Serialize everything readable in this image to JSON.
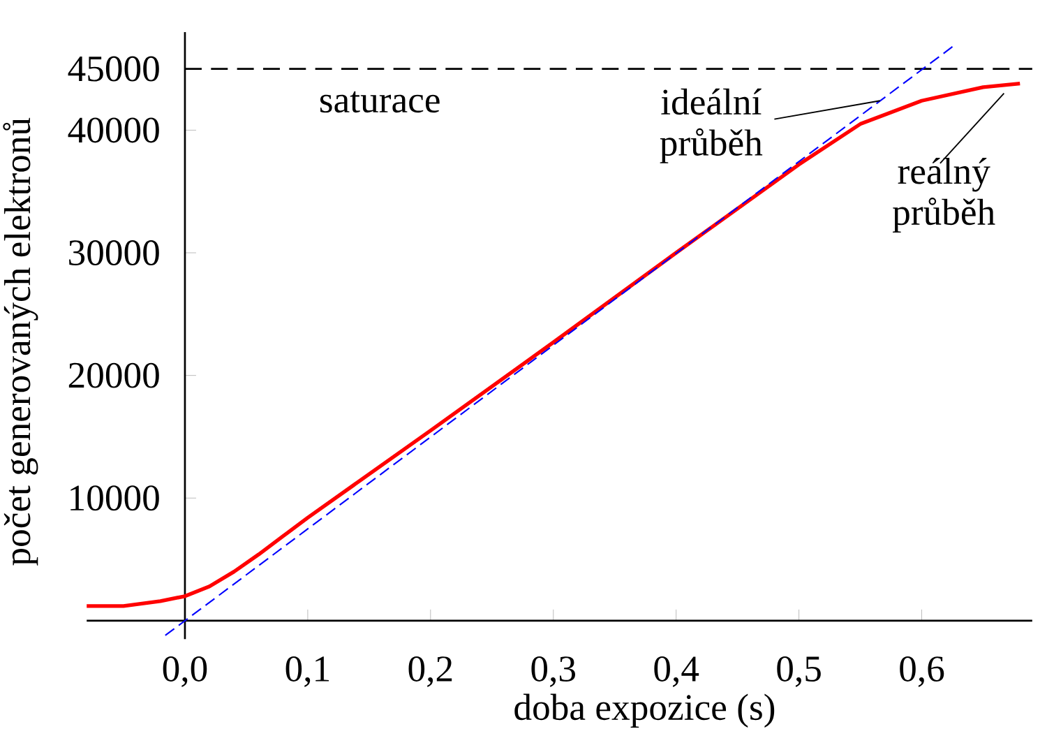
{
  "chart_data": {
    "type": "line",
    "xlabel": "doba expozice (s)",
    "ylabel": "počet generovaných elektronů",
    "xlim": [
      -0.08,
      0.69
    ],
    "ylim": [
      -1500,
      48000
    ],
    "xticks": [
      {
        "value": 0,
        "label": "0,0"
      },
      {
        "value": 0.1,
        "label": "0,1"
      },
      {
        "value": 0.2,
        "label": "0,2"
      },
      {
        "value": 0.3,
        "label": "0,3"
      },
      {
        "value": 0.4,
        "label": "0,4"
      },
      {
        "value": 0.5,
        "label": "0,5"
      },
      {
        "value": 0.6,
        "label": "0,6"
      }
    ],
    "yticks": [
      10000,
      20000,
      30000,
      40000,
      45000
    ],
    "series": [
      {
        "color": "#ff0000",
        "line_style": "solid",
        "x": [
          -0.08,
          -0.05,
          -0.02,
          0,
          0.02,
          0.04,
          0.06,
          0.08,
          0.1,
          0.2,
          0.3,
          0.4,
          0.5,
          0.55,
          0.6,
          0.65,
          0.68
        ],
        "values": [
          1200,
          1200,
          1600,
          2000,
          2800,
          4000,
          5400,
          6900,
          8400,
          15500,
          22700,
          30000,
          37200,
          40500,
          42400,
          43500,
          43800
        ]
      },
      {
        "color": "#0000ff",
        "line_style": "dashed",
        "x": [
          -0.016,
          0.625
        ],
        "values": [
          -1200,
          46800
        ]
      }
    ],
    "ref_lines": [
      {
        "axis": "y",
        "value": 45000,
        "label": "saturace",
        "color": "#000000",
        "line_style": "dashed"
      }
    ],
    "annotations": [
      {
        "text": "ideální průběh",
        "x": 0.566,
        "y": 42400
      },
      {
        "text": "reálný průběh",
        "x": 0.667,
        "y": 43000
      }
    ],
    "grid": false,
    "marker": "none"
  }
}
